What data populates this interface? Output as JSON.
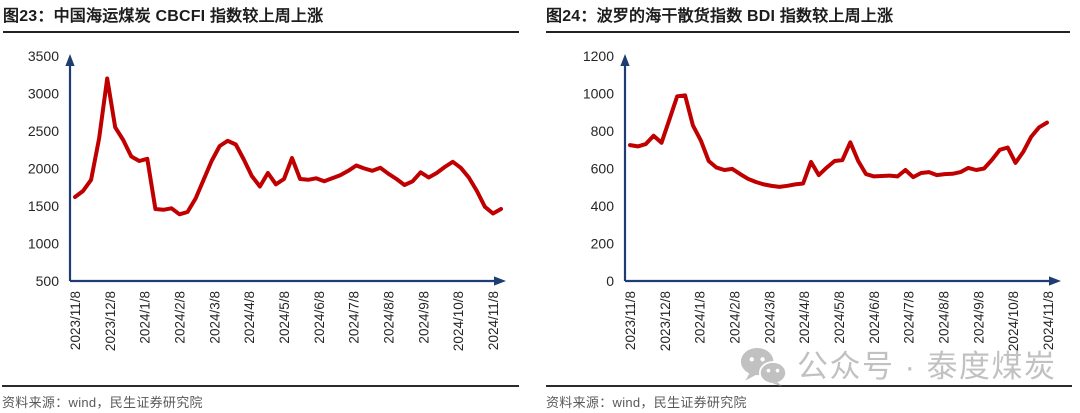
{
  "colors": {
    "series_red": "#c00000",
    "axis_navy": "#1f3d73",
    "title_text": "#1c1c1c",
    "source_text": "#595959",
    "watermark_gray": "#8f8f8f"
  },
  "watermark": {
    "icon": "wechat-icon",
    "text": "公众号 · 泰度煤炭"
  },
  "charts": [
    {
      "title": "图23：中国海运煤炭 CBCFI 指数较上周上涨",
      "source": "资料来源：wind，民生证券研究院",
      "chart_data": {
        "type": "line",
        "title": "中国海运煤炭 CBCFI 指数较上周上涨",
        "xlabel": "",
        "ylabel": "",
        "ylim": [
          500,
          3500
        ],
        "yticks": [
          500,
          1000,
          1500,
          2000,
          2500,
          3000,
          3500
        ],
        "grid": false,
        "legend": "none",
        "x_tick_labels": [
          "2023/11/8",
          "2023/12/8",
          "2024/1/8",
          "2024/2/8",
          "2024/3/8",
          "2024/4/8",
          "2024/5/8",
          "2024/6/8",
          "2024/7/8",
          "2024/8/8",
          "2024/9/8",
          "2024/10/8",
          "2024/11/8"
        ],
        "series": [
          {
            "name": "CBCFI",
            "color": "#c00000",
            "values": [
              1620,
              1700,
              1850,
              2400,
              3200,
              2550,
              2380,
              2160,
              2100,
              2130,
              1460,
              1450,
              1470,
              1390,
              1420,
              1600,
              1850,
              2100,
              2300,
              2370,
              2320,
              2120,
              1900,
              1760,
              1940,
              1790,
              1860,
              2140,
              1860,
              1850,
              1870,
              1830,
              1870,
              1910,
              1970,
              2040,
              2000,
              1970,
              2010,
              1930,
              1860,
              1780,
              1830,
              1950,
              1880,
              1940,
              2020,
              2090,
              2010,
              1880,
              1700,
              1490,
              1400,
              1460
            ]
          }
        ]
      }
    },
    {
      "title": "图24：波罗的海干散货指数 BDI 指数较上周上涨",
      "source": "资料来源：wind，民生证券研究院",
      "chart_data": {
        "type": "line",
        "title": "波罗的海干散货指数 BDI 指数较上周上涨",
        "xlabel": "",
        "ylabel": "",
        "ylim": [
          0,
          1200
        ],
        "yticks": [
          0,
          200,
          400,
          600,
          800,
          1000,
          1200
        ],
        "grid": false,
        "legend": "none",
        "x_tick_labels": [
          "2023/11/8",
          "2023/12/8",
          "2024/1/8",
          "2024/2/8",
          "2024/3/8",
          "2024/4/8",
          "2024/5/8",
          "2024/6/8",
          "2024/7/8",
          "2024/8/8",
          "2024/9/8",
          "2024/10/8",
          "2024/11/8"
        ],
        "series": [
          {
            "name": "BDI",
            "color": "#c00000",
            "values": [
              725,
              718,
              730,
              775,
              737,
              860,
              985,
              990,
              830,
              750,
              640,
              605,
              592,
              598,
              570,
              545,
              528,
              515,
              507,
              502,
              508,
              515,
              520,
              635,
              565,
              605,
              640,
              645,
              740,
              640,
              570,
              558,
              560,
              562,
              558,
              592,
              554,
              576,
              581,
              565,
              570,
              572,
              581,
              603,
              592,
              600,
              646,
              700,
              712,
              630,
              690,
              770,
              820,
              845
            ]
          }
        ]
      }
    }
  ]
}
